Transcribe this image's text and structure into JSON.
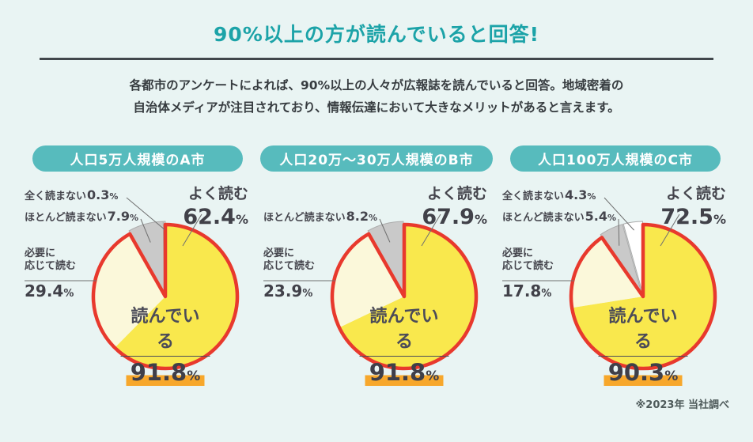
{
  "percent_sign": "%",
  "page": {
    "title": "90%以上の方が読んでいると回答!",
    "description_line1": "各都市のアンケートによれば、90%以上の人々が広報誌を読んでいると回答。地域密着の",
    "description_line2": "自治体メディアが注目されており、情報伝達において大きなメリットがあると言えます。",
    "footnote": "※2023年 当社調べ"
  },
  "colors": {
    "background": "#E9F4F3",
    "title_teal": "#1CA3A8",
    "pill_bg": "#57BBBD",
    "divider": "#41474B",
    "slice_often": "#F9E84D",
    "slice_sometimes": "#FBF8DA",
    "slice_rarely": "#C9C9C9",
    "slice_never": "#FFFFFF",
    "outline_red": "#E8392D",
    "highlight_orange": "#F7A72B",
    "label_text": "#45454D"
  },
  "chart_data": [
    {
      "type": "pie",
      "city_label": "人口5万人規模のA市",
      "center": {
        "label": "読んでいる",
        "value": "91.8"
      },
      "slices": [
        {
          "name": "よく読む",
          "value": 62.4
        },
        {
          "name": "必要に応じて読む",
          "name_line1": "必要に",
          "name_line2": "応じて読む",
          "value": 29.4
        },
        {
          "name": "ほとんど読まない",
          "value": 7.9
        },
        {
          "name": "全く読まない",
          "value": 0.3
        }
      ]
    },
    {
      "type": "pie",
      "city_label": "人口20万〜30万人規模のB市",
      "center": {
        "label": "読んでいる",
        "value": "91.8"
      },
      "slices": [
        {
          "name": "よく読む",
          "value": 67.9
        },
        {
          "name": "必要に応じて読む",
          "name_line1": "必要に",
          "name_line2": "応じて読む",
          "value": 23.9
        },
        {
          "name": "ほとんど読まない",
          "value": 8.2
        }
      ]
    },
    {
      "type": "pie",
      "city_label": "人口100万人規模のC市",
      "center": {
        "label": "読んでいる",
        "value": "90.3"
      },
      "slices": [
        {
          "name": "よく読む",
          "value": 72.5
        },
        {
          "name": "必要に応じて読む",
          "name_line1": "必要に",
          "name_line2": "応じて読む",
          "value": 17.8
        },
        {
          "name": "ほとんど読まない",
          "value": 5.4
        },
        {
          "name": "全く読まない",
          "value": 4.3
        }
      ]
    }
  ]
}
